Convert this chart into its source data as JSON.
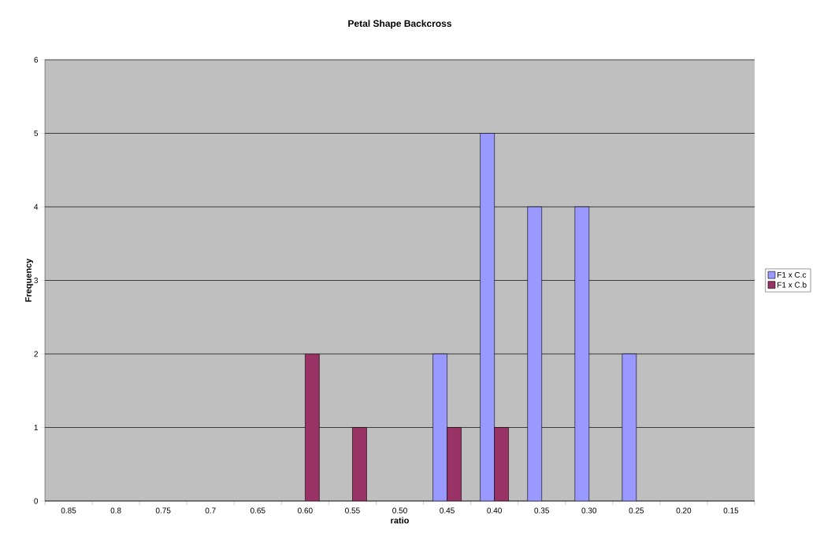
{
  "chart_data": {
    "type": "bar",
    "title": "Petal Shape Backcross",
    "xlabel": "ratio",
    "ylabel": "Frequency",
    "categories": [
      "0.85",
      "0.8",
      "0.75",
      "0.7",
      "0.65",
      "0.60",
      "0.55",
      "0.50",
      "0.45",
      "0.40",
      "0.35",
      "0.30",
      "0.25",
      "0.20",
      "0.15"
    ],
    "series": [
      {
        "name": "F1 x C.c",
        "color": "#9999ff",
        "values": [
          0,
          0,
          0,
          0,
          0,
          0,
          0,
          0,
          2,
          5,
          4,
          4,
          2,
          0,
          0
        ]
      },
      {
        "name": "F1 x C.b",
        "color": "#993366",
        "values": [
          0,
          0,
          0,
          0,
          0,
          2,
          1,
          0,
          1,
          1,
          0,
          0,
          0,
          0,
          0
        ]
      }
    ],
    "ylim": [
      0,
      6
    ],
    "yticks": [
      0,
      1,
      2,
      3,
      4,
      5,
      6
    ],
    "grid": "y",
    "legend": "right"
  }
}
